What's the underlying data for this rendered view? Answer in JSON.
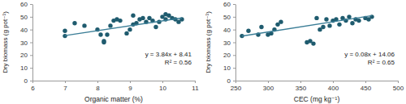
{
  "chart_data": [
    {
      "type": "scatter",
      "x_label": "Organic matter (%)",
      "y_label": "Dry biomass (g pot⁻¹)",
      "xlim": [
        6,
        11
      ],
      "xticks": [
        6,
        7,
        8,
        9,
        10,
        11
      ],
      "ylim": [
        0,
        60
      ],
      "yticks": [
        0,
        10,
        20,
        30,
        40,
        50,
        60
      ],
      "grid": false,
      "annotations": [
        "y = 3.84x + 8.41",
        "R² = 0.56"
      ],
      "series": [
        {
          "type": "scatter",
          "marker": "circle",
          "color": "#1f5b6e",
          "x": [
            7.0,
            7.0,
            7.3,
            7.6,
            8.0,
            8.1,
            8.2,
            8.2,
            8.3,
            8.4,
            8.5,
            8.6,
            8.7,
            8.9,
            9.0,
            9.1,
            9.1,
            9.2,
            9.3,
            9.4,
            9.5,
            9.6,
            9.7,
            9.8,
            9.9,
            10.0,
            10.1,
            10.1,
            10.2,
            10.3,
            10.4,
            10.5,
            10.6
          ],
          "values": [
            35,
            39,
            45,
            43,
            40,
            36,
            31,
            30,
            36,
            43,
            47,
            48,
            47,
            37,
            40,
            44,
            51,
            45,
            48,
            49,
            46,
            49,
            47,
            42,
            46,
            50,
            52,
            48,
            51,
            49,
            48,
            46,
            48
          ]
        },
        {
          "type": "line",
          "line_style": "solid",
          "color": "#3a7d96",
          "x": [
            7.0,
            10.6
          ],
          "values": [
            35.3,
            49.1
          ]
        }
      ]
    },
    {
      "type": "scatter",
      "x_label": "CEC (mg kg⁻¹)",
      "y_label": "Dry biomass (g pot⁻¹)",
      "xlim": [
        250,
        500
      ],
      "xticks": [
        250,
        300,
        350,
        400,
        450,
        500
      ],
      "ylim": [
        0,
        60
      ],
      "yticks": [
        0,
        10,
        20,
        30,
        40,
        50,
        60
      ],
      "grid": false,
      "annotations": [
        "y = 0.08x + 14.06",
        "R² = 0.65"
      ],
      "series": [
        {
          "type": "scatter",
          "marker": "circle",
          "color": "#1f5b6e",
          "x": [
            260,
            270,
            285,
            290,
            300,
            305,
            310,
            315,
            320,
            360,
            365,
            370,
            375,
            380,
            385,
            390,
            395,
            400,
            405,
            410,
            415,
            420,
            425,
            430,
            435,
            440,
            450,
            455,
            460
          ],
          "values": [
            35,
            39,
            36,
            42,
            36,
            37,
            40,
            44,
            46,
            30,
            31,
            29,
            49,
            40,
            42,
            48,
            43,
            47,
            48,
            44,
            49,
            47,
            50,
            45,
            48,
            47,
            49,
            48,
            50
          ]
        },
        {
          "type": "line",
          "line_style": "solid",
          "color": "#3a7d96",
          "x": [
            260,
            460
          ],
          "values": [
            34.9,
            50.9
          ]
        }
      ]
    }
  ]
}
